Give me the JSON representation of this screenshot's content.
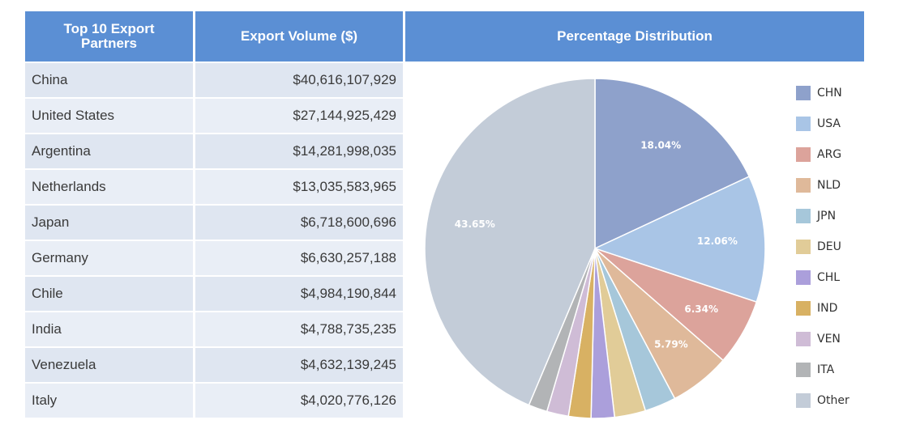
{
  "headers": {
    "partner": "Top 10 Export Partners",
    "volume": "Export Volume ($)",
    "distribution": "Percentage Distribution"
  },
  "table": {
    "rows": [
      {
        "name": "China",
        "value": "$40,616,107,929"
      },
      {
        "name": "United States",
        "value": "$27,144,925,429"
      },
      {
        "name": "Argentina",
        "value": "$14,281,998,035"
      },
      {
        "name": "Netherlands",
        "value": "$13,035,583,965"
      },
      {
        "name": "Japan",
        "value": "$6,718,600,696"
      },
      {
        "name": "Germany",
        "value": "$6,630,257,188"
      },
      {
        "name": "Chile",
        "value": "$4,984,190,844"
      },
      {
        "name": "India",
        "value": "$4,788,735,235"
      },
      {
        "name": "Venezuela",
        "value": "$4,632,139,245"
      },
      {
        "name": "Italy",
        "value": "$4,020,776,126"
      }
    ]
  },
  "chart_data": {
    "type": "pie",
    "title": "Percentage Distribution",
    "legend_position": "right",
    "slices": [
      {
        "label": "CHN",
        "value": 18.04,
        "color": "#8ea1cb",
        "show_label": true,
        "display": "18.04%"
      },
      {
        "label": "USA",
        "value": 12.06,
        "color": "#a9c5e6",
        "show_label": true,
        "display": "12.06%"
      },
      {
        "label": "ARG",
        "value": 6.34,
        "color": "#dca39b",
        "show_label": true,
        "display": "6.34%"
      },
      {
        "label": "NLD",
        "value": 5.79,
        "color": "#dfb99a",
        "show_label": true,
        "display": "5.79%"
      },
      {
        "label": "JPN",
        "value": 2.98,
        "color": "#a6c7da",
        "show_label": false,
        "display": ""
      },
      {
        "label": "DEU",
        "value": 2.95,
        "color": "#e1cc98",
        "show_label": false,
        "display": ""
      },
      {
        "label": "CHL",
        "value": 2.21,
        "color": "#ab9fdb",
        "show_label": false,
        "display": ""
      },
      {
        "label": "IND",
        "value": 2.13,
        "color": "#d8b163",
        "show_label": false,
        "display": ""
      },
      {
        "label": "VEN",
        "value": 2.06,
        "color": "#cfbcd6",
        "show_label": false,
        "display": ""
      },
      {
        "label": "ITA",
        "value": 1.79,
        "color": "#b2b4b6",
        "show_label": false,
        "display": ""
      },
      {
        "label": "Other",
        "value": 43.65,
        "color": "#c3ccd8",
        "show_label": true,
        "display": "43.65%"
      }
    ]
  }
}
